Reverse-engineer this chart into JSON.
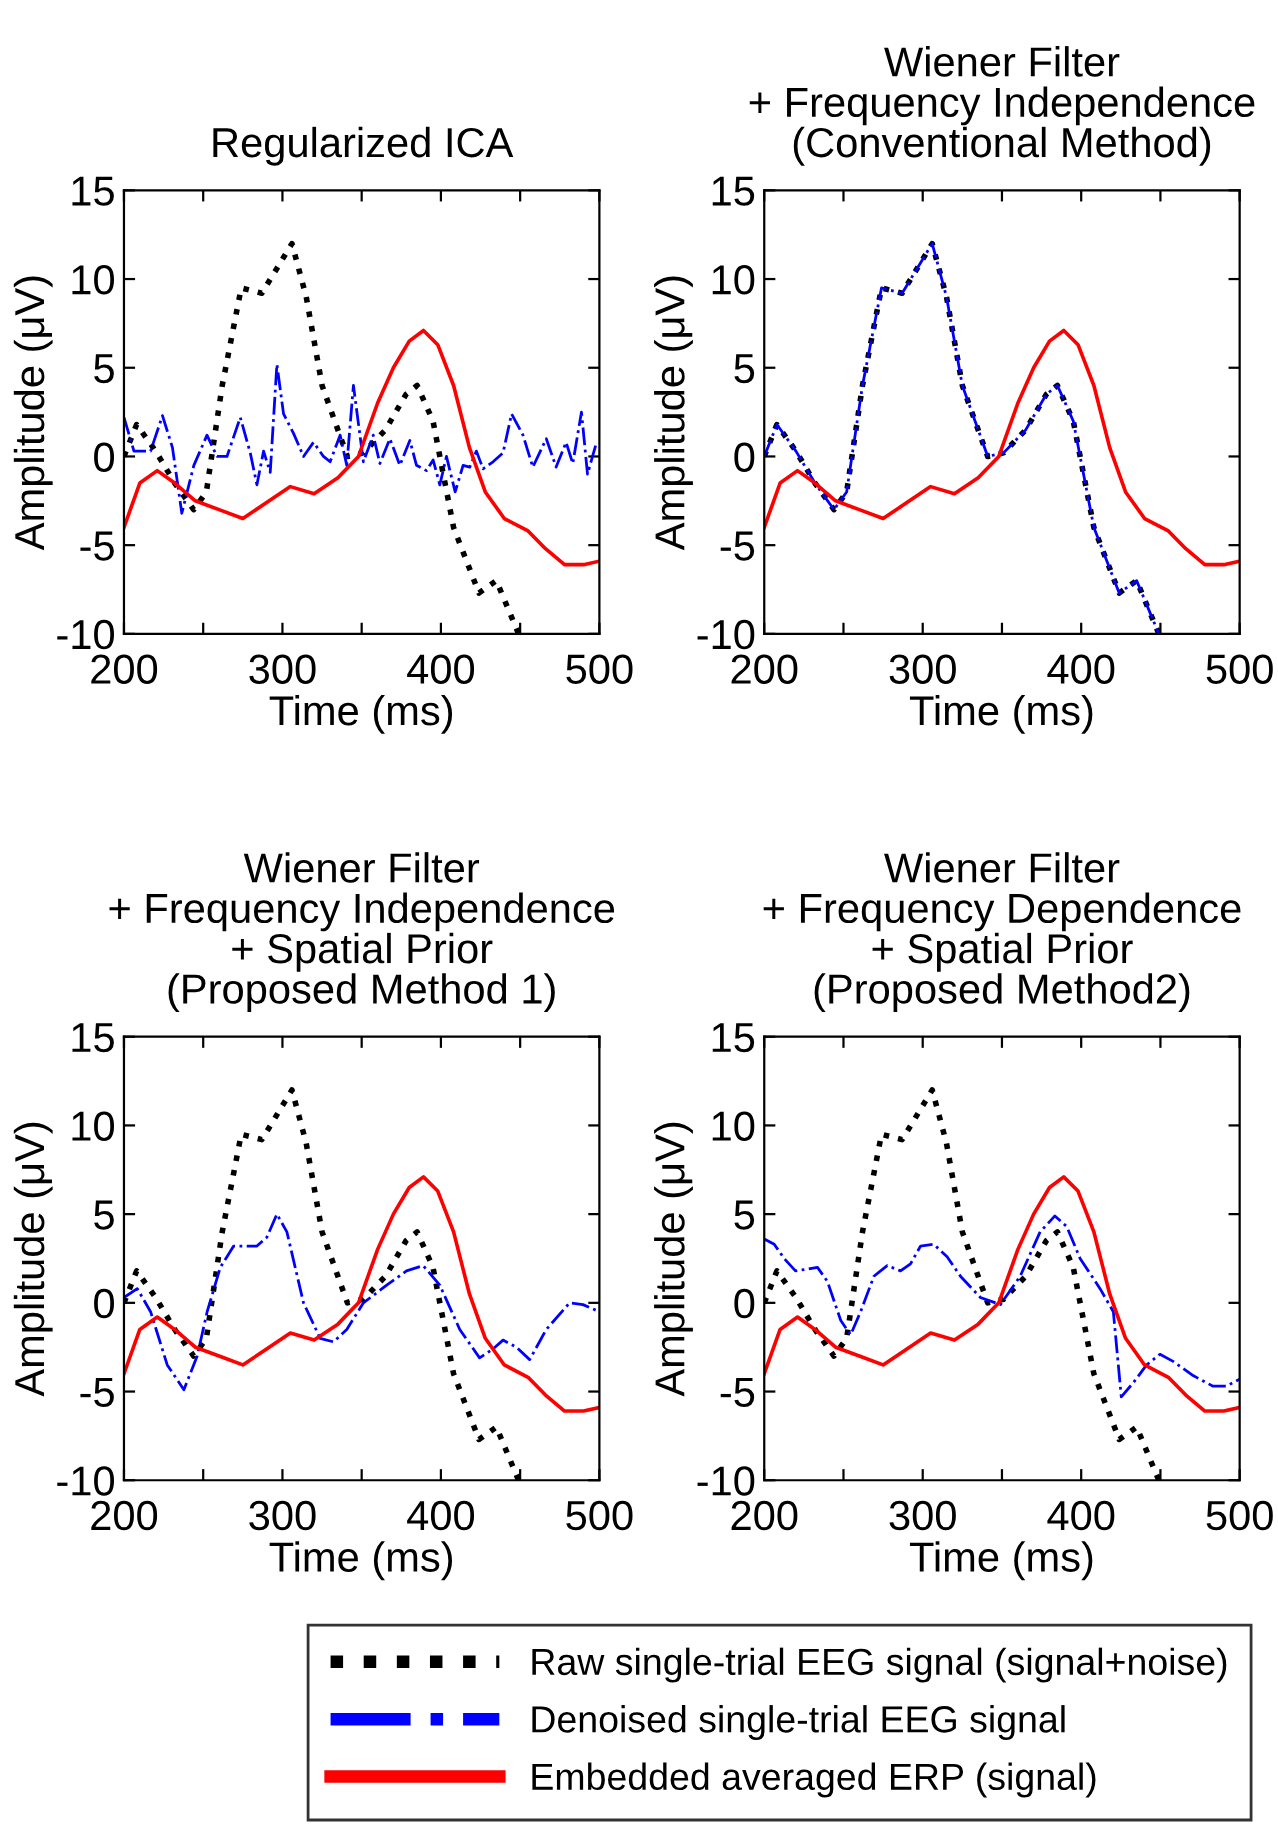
{
  "chart_data": [
    {
      "type": "line",
      "title": "Regularized ICA",
      "xlabel": "Time (ms)",
      "ylabel": "Amplitude (μV)",
      "xlim": [
        200,
        500
      ],
      "ylim": [
        -10,
        15
      ],
      "xticks": [
        200,
        {
          "value": 250,
          "label": null
        },
        300,
        {
          "value": 350,
          "label": null
        },
        400,
        {
          "value": 450,
          "label": null
        },
        500
      ],
      "yticks": [
        -10,
        -5,
        0,
        5,
        10,
        15
      ],
      "grid": false,
      "legend": "bottom",
      "series": [
        {
          "name": "Raw single-trial EEG signal (signal+noise)",
          "color": "#000000",
          "line_style": "dotted",
          "x": [
            200,
            208,
            220,
            232,
            244,
            252,
            262,
            274,
            287,
            306,
            315,
            325,
            341,
            351,
            365,
            378,
            385,
            395,
            408,
            424,
            435,
            449
          ],
          "values": [
            0,
            1.8,
            0.3,
            -1.5,
            -3,
            -2,
            4,
            9.5,
            9.2,
            12,
            9,
            4,
            0,
            0.2,
            1.5,
            3.5,
            4,
            2,
            -4,
            -7.7,
            -7,
            -10
          ]
        },
        {
          "name": "Denoised single-trial EEG signal",
          "color": "#0000ff",
          "line_style": "dashdot",
          "x": [
            200,
            206.3,
            216.8,
            224.3,
            230.6,
            236.5,
            244.1,
            252.4,
            258.7,
            265.0,
            273.4,
            279.7,
            283.9,
            288.1,
            292.3,
            296.5,
            300.7,
            307.0,
            313.3,
            319.6,
            325.9,
            330.1,
            336.4,
            340.6,
            344.8,
            351.1,
            357.3,
            361.5,
            367.8,
            374.1,
            380.4,
            384.6,
            390.9,
            395.1,
            399.3,
            403.5,
            409.0,
            414.0,
            418.2,
            422.4,
            426.6,
            432.9,
            439.2,
            444.6,
            451.8,
            458.0,
            466.5,
            472.7,
            479.0,
            483.2,
            488.7,
            492.5,
            497.9
          ],
          "values": [
            2.2,
            0.3,
            0.3,
            2.3,
            0.5,
            -3.2,
            -0.5,
            1.2,
            0,
            0,
            2.2,
            0.2,
            -1.6,
            0.3,
            -0.9,
            5.2,
            2.4,
            1.3,
            0,
            0.8,
            0,
            -0.3,
            1.2,
            -0.5,
            4,
            -0.3,
            1.2,
            -0.4,
            1,
            -0.5,
            0.9,
            -0.5,
            -0.8,
            -0.2,
            -1.6,
            0,
            -2,
            -0.5,
            -0.6,
            0.3,
            -0.7,
            -0.3,
            0.2,
            2.4,
            1.2,
            -0.6,
            1,
            -0.6,
            0.8,
            -0.4,
            2.5,
            -1,
            0.7
          ]
        },
        {
          "name": "Embedded averaged ERP (signal)",
          "color": "#ff0000",
          "line_style": "solid",
          "x": [
            200,
            210,
            221,
            232,
            245,
            260,
            275,
            290,
            305,
            320,
            335,
            348,
            360,
            370,
            380,
            389,
            398,
            408,
            418,
            428,
            440,
            455,
            466,
            478,
            490,
            500
          ],
          "values": [
            -4,
            -1.5,
            -0.8,
            -1.5,
            -2.5,
            -3,
            -3.5,
            -2.6,
            -1.7,
            -2.1,
            -1.2,
            0,
            3,
            5,
            6.5,
            7.1,
            6.3,
            4,
            0.5,
            -2,
            -3.5,
            -4.2,
            -5.2,
            -6.1,
            -6.1,
            -5.9
          ]
        }
      ]
    },
    {
      "type": "line",
      "title": "Wiener Filter\n+ Frequency Independence\n(Conventional Method)",
      "xlabel": "Time (ms)",
      "ylabel": "Amplitude (μV)",
      "xlim": [
        200,
        500
      ],
      "ylim": [
        -10,
        15
      ],
      "xticks": [
        200,
        {
          "value": 250,
          "label": null
        },
        300,
        {
          "value": 350,
          "label": null
        },
        400,
        {
          "value": 450,
          "label": null
        },
        500
      ],
      "yticks": [
        -10,
        -5,
        0,
        5,
        10,
        15
      ],
      "grid": false,
      "series": [
        {
          "color": "#000000",
          "line_style": "dotted",
          "x": [
            200,
            208,
            220,
            232,
            244,
            252,
            262,
            274,
            287,
            306,
            315,
            325,
            341,
            351,
            365,
            378,
            385,
            395,
            408,
            424,
            435,
            449
          ],
          "values": [
            0,
            1.8,
            0.3,
            -1.5,
            -3,
            -2,
            4,
            9.5,
            9.2,
            12,
            9,
            4,
            0,
            0.2,
            1.5,
            3.5,
            4,
            2,
            -4,
            -7.7,
            -7,
            -10
          ]
        },
        {
          "color": "#0000ff",
          "line_style": "dashdot",
          "x": [
            200,
            208,
            220,
            232,
            244,
            252,
            262,
            274,
            287,
            306,
            315,
            325,
            341,
            351,
            365,
            378,
            385,
            395,
            408,
            424,
            435,
            449
          ],
          "values": [
            0,
            1.8,
            0.3,
            -1.5,
            -3,
            -2,
            4,
            9.5,
            9.2,
            12,
            9,
            4,
            0,
            0.2,
            1.5,
            3.5,
            4,
            2,
            -4,
            -7.7,
            -7,
            -10
          ]
        },
        {
          "color": "#ff0000",
          "line_style": "solid",
          "x": [
            200,
            210,
            221,
            232,
            245,
            260,
            275,
            290,
            305,
            320,
            335,
            348,
            360,
            370,
            380,
            389,
            398,
            408,
            418,
            428,
            440,
            455,
            466,
            478,
            490,
            500
          ],
          "values": [
            -4,
            -1.5,
            -0.8,
            -1.5,
            -2.5,
            -3,
            -3.5,
            -2.6,
            -1.7,
            -2.1,
            -1.2,
            0,
            3,
            5,
            6.5,
            7.1,
            6.3,
            4,
            0.5,
            -2,
            -3.5,
            -4.2,
            -5.2,
            -6.1,
            -6.1,
            -5.9
          ]
        }
      ]
    },
    {
      "type": "line",
      "title": "Wiener Filter\n+ Frequency Independence\n+ Spatial Prior\n(Proposed Method 1)",
      "xlabel": "Time (ms)",
      "ylabel": "Amplitude (μV)",
      "xlim": [
        200,
        500
      ],
      "ylim": [
        -10,
        15
      ],
      "xticks": [
        200,
        {
          "value": 250,
          "label": null
        },
        300,
        {
          "value": 350,
          "label": null
        },
        400,
        {
          "value": 450,
          "label": null
        },
        500
      ],
      "yticks": [
        -10,
        -5,
        0,
        5,
        10,
        15
      ],
      "grid": false,
      "series": [
        {
          "color": "#000000",
          "line_style": "dotted",
          "x": [
            200,
            208,
            220,
            232,
            244,
            252,
            262,
            274,
            287,
            306,
            315,
            325,
            341,
            351,
            365,
            378,
            385,
            395,
            408,
            424,
            435,
            449
          ],
          "values": [
            0,
            1.8,
            0.3,
            -1.5,
            -3,
            -2,
            4,
            9.5,
            9.2,
            12,
            9,
            4,
            0,
            0.2,
            1.5,
            3.5,
            4,
            2,
            -4,
            -7.7,
            -7,
            -10
          ]
        },
        {
          "color": "#0000ff",
          "line_style": "dashdot",
          "x": [
            200,
            208.4,
            216.8,
            227.3,
            237.8,
            246.2,
            252.5,
            260.8,
            269.2,
            283.9,
            290.2,
            296.5,
            302.8,
            313.3,
            323.8,
            332.2,
            340.6,
            351.1,
            365.8,
            378.3,
            388.8,
            399.3,
            411.9,
            424.4,
            432.9,
            439.2,
            447.6,
            456.0,
            466.5,
            481.2,
            489.6,
            500
          ],
          "values": [
            0.3,
            0.8,
            -0.5,
            -3.5,
            -4.9,
            -3,
            -0.5,
            2,
            3.2,
            3.2,
            3.7,
            5,
            4,
            0,
            -2,
            -2.2,
            -1.5,
            0,
            1,
            1.8,
            2.1,
            1,
            -1.5,
            -3.1,
            -2.6,
            -2.1,
            -2.5,
            -3.2,
            -1.5,
            0,
            -0.1,
            -0.5
          ]
        },
        {
          "color": "#ff0000",
          "line_style": "solid",
          "x": [
            200,
            210,
            221,
            232,
            245,
            260,
            275,
            290,
            305,
            320,
            335,
            348,
            360,
            370,
            380,
            389,
            398,
            408,
            418,
            428,
            440,
            455,
            466,
            478,
            490,
            500
          ],
          "values": [
            -4,
            -1.5,
            -0.8,
            -1.5,
            -2.5,
            -3,
            -3.5,
            -2.6,
            -1.7,
            -2.1,
            -1.2,
            0,
            3,
            5,
            6.5,
            7.1,
            6.3,
            4,
            0.5,
            -2,
            -3.5,
            -4.2,
            -5.2,
            -6.1,
            -6.1,
            -5.9
          ]
        }
      ]
    },
    {
      "type": "line",
      "title": "Wiener Filter\n+ Frequency Dependence\n+ Spatial Prior\n(Proposed Method2)",
      "xlabel": "Time (ms)",
      "ylabel": "Amplitude (μV)",
      "xlim": [
        200,
        500
      ],
      "ylim": [
        -10,
        15
      ],
      "xticks": [
        200,
        {
          "value": 250,
          "label": null
        },
        300,
        {
          "value": 350,
          "label": null
        },
        400,
        {
          "value": 450,
          "label": null
        },
        500
      ],
      "yticks": [
        -10,
        -5,
        0,
        5,
        10,
        15
      ],
      "grid": false,
      "series": [
        {
          "color": "#000000",
          "line_style": "dotted",
          "x": [
            200,
            208,
            220,
            232,
            244,
            252,
            262,
            274,
            287,
            306,
            315,
            325,
            341,
            351,
            365,
            378,
            385,
            395,
            408,
            424,
            435,
            449
          ],
          "values": [
            0,
            1.8,
            0.3,
            -1.5,
            -3,
            -2,
            4,
            9.5,
            9.2,
            12,
            9,
            4,
            0,
            0.2,
            1.5,
            3.5,
            4,
            2,
            -4,
            -7.7,
            -7,
            -10
          ]
        },
        {
          "color": "#0000ff",
          "line_style": "dashdot",
          "x": [
            200,
            206.3,
            212.6,
            219.7,
            227.3,
            233.6,
            239.9,
            248.3,
            254.5,
            260.8,
            269.2,
            277.6,
            286.0,
            292.3,
            298.6,
            307.0,
            315.4,
            323.8,
            336.4,
            349.0,
            361.5,
            374.1,
            383.4,
            390.9,
            399.3,
            411.9,
            420.3,
            425.3,
            432.9,
            441.3,
            449.7,
            458.0,
            470.6,
            483.2,
            491.6,
            500
          ],
          "values": [
            3.6,
            3.3,
            2.5,
            1.8,
            1.9,
            2,
            1.2,
            -1,
            -1.8,
            -0.5,
            1.5,
            2.1,
            1.8,
            2.2,
            3.2,
            3.3,
            2.6,
            1.5,
            0.3,
            -0.1,
            1.5,
            4,
            4.9,
            4.3,
            2.5,
            0.8,
            -0.5,
            -5.3,
            -4.5,
            -3.5,
            -2.9,
            -3.3,
            -4.1,
            -4.7,
            -4.7,
            -4.3
          ]
        },
        {
          "color": "#ff0000",
          "line_style": "solid",
          "x": [
            200,
            210,
            221,
            232,
            245,
            260,
            275,
            290,
            305,
            320,
            335,
            348,
            360,
            370,
            380,
            389,
            398,
            408,
            418,
            428,
            440,
            455,
            466,
            478,
            490,
            500
          ],
          "values": [
            -4,
            -1.5,
            -0.8,
            -1.5,
            -2.5,
            -3,
            -3.5,
            -2.6,
            -1.7,
            -2.1,
            -1.2,
            0,
            3,
            5,
            6.5,
            7.1,
            6.3,
            4,
            0.5,
            -2,
            -3.5,
            -4.2,
            -5.2,
            -6.1,
            -6.1,
            -5.9
          ]
        }
      ]
    }
  ]
}
